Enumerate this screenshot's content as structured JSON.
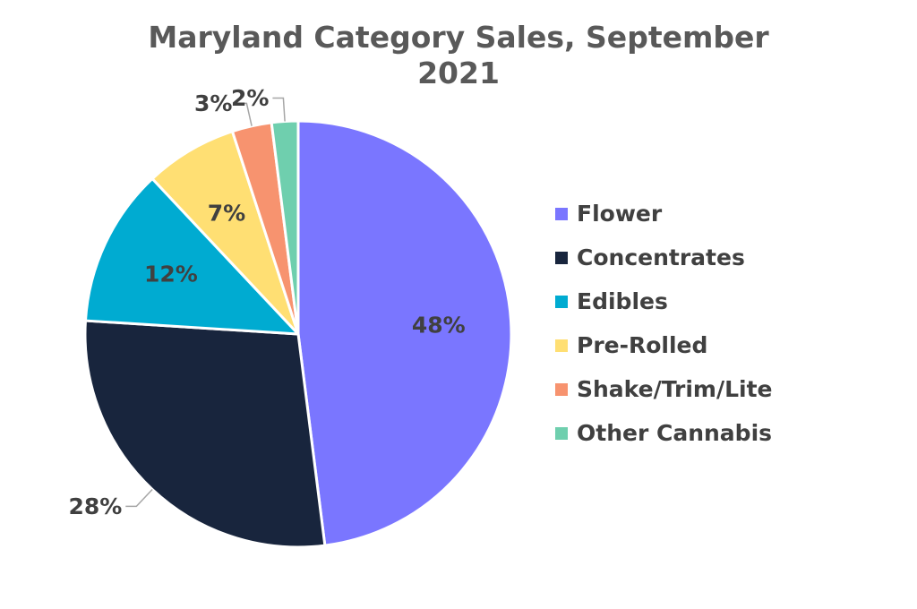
{
  "chart_data": {
    "type": "pie",
    "title": "Maryland Category Sales, September 2021",
    "title_lines": [
      "Maryland Category Sales, September",
      "2021"
    ],
    "legend_position": "right",
    "slices": [
      {
        "label": "Flower",
        "value": 48,
        "display": "48%",
        "color": "#7A76FF"
      },
      {
        "label": "Concentrates",
        "value": 28,
        "display": "28%",
        "color": "#18253D"
      },
      {
        "label": "Edibles",
        "value": 12,
        "display": "12%",
        "color": "#00ABD1"
      },
      {
        "label": "Pre-Rolled",
        "value": 7,
        "display": "7%",
        "color": "#FFDF73"
      },
      {
        "label": "Shake/Trim/Lite",
        "value": 3,
        "display": "3%",
        "color": "#F7936F"
      },
      {
        "label": "Other Cannabis",
        "value": 2,
        "display": "2%",
        "color": "#6FCFAE"
      }
    ]
  }
}
